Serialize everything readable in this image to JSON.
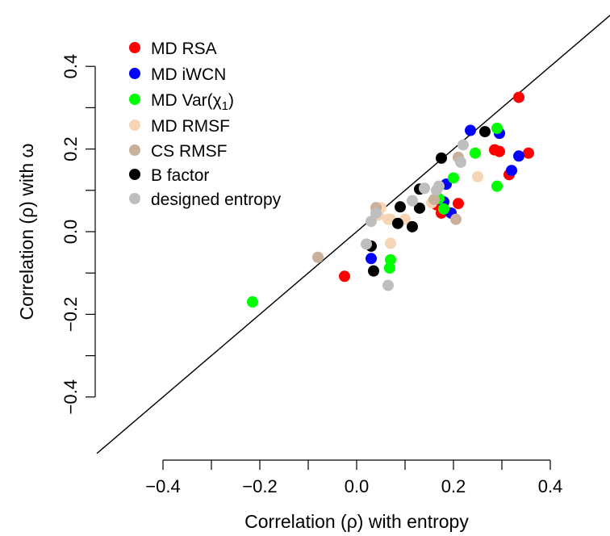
{
  "chart_data": {
    "type": "scatter",
    "xlabel": "Correlation (ρ) with entropy",
    "ylabel": "Correlation (ρ) with ω",
    "xlim": [
      -0.4,
      0.4
    ],
    "ylim": [
      -0.4,
      0.4
    ],
    "xticks": [
      -0.4,
      -0.3,
      -0.2,
      -0.1,
      0.0,
      0.1,
      0.2,
      0.3,
      0.4
    ],
    "xtick_labels": [
      "−0.4",
      "",
      "−0.2",
      "",
      "0.0",
      "",
      "0.2",
      "",
      "0.4"
    ],
    "yticks": [
      -0.4,
      -0.3,
      -0.2,
      -0.1,
      0.0,
      0.1,
      0.2,
      0.3,
      0.4
    ],
    "ytick_labels": [
      "−0.4",
      "",
      "−0.2",
      "",
      "0.0",
      "",
      "0.2",
      "",
      "0.4"
    ],
    "reference_line": "y = x",
    "legend_position": "top-left",
    "series": [
      {
        "name": "MD RSA",
        "color": "#ff0000",
        "points": [
          [
            0.335,
            0.325
          ],
          [
            0.355,
            0.19
          ],
          [
            0.285,
            0.198
          ],
          [
            0.295,
            0.194
          ],
          [
            0.315,
            0.138
          ],
          [
            0.21,
            0.068
          ],
          [
            0.175,
            0.045
          ],
          [
            0.165,
            0.065
          ],
          [
            -0.025,
            -0.108
          ]
        ]
      },
      {
        "name": "MD iWCN",
        "color": "#0000ff",
        "points": [
          [
            0.235,
            0.245
          ],
          [
            0.295,
            0.238
          ],
          [
            0.335,
            0.183
          ],
          [
            0.32,
            0.148
          ],
          [
            0.185,
            0.115
          ],
          [
            0.18,
            0.072
          ],
          [
            0.195,
            0.045
          ],
          [
            0.03,
            -0.065
          ]
        ]
      },
      {
        "name": "MD Var(χ₁)",
        "color": "#00ff00",
        "points": [
          [
            0.29,
            0.25
          ],
          [
            0.245,
            0.19
          ],
          [
            0.2,
            0.13
          ],
          [
            0.29,
            0.11
          ],
          [
            0.17,
            0.08
          ],
          [
            0.18,
            0.055
          ],
          [
            0.07,
            -0.068
          ],
          [
            0.068,
            -0.088
          ],
          [
            -0.215,
            -0.17
          ]
        ]
      },
      {
        "name": "MD RMSF",
        "color": "#f5d5b5",
        "points": [
          [
            0.25,
            0.133
          ],
          [
            0.05,
            0.058
          ],
          [
            0.045,
            0.04
          ],
          [
            0.065,
            0.03
          ],
          [
            0.07,
            0.03
          ],
          [
            0.1,
            0.03
          ],
          [
            0.07,
            -0.028
          ],
          [
            0.155,
            0.07
          ]
        ]
      },
      {
        "name": "CS RMSF",
        "color": "#c8b09a",
        "points": [
          [
            0.21,
            0.18
          ],
          [
            0.16,
            0.078
          ],
          [
            0.04,
            0.058
          ],
          [
            0.205,
            0.03
          ],
          [
            -0.08,
            -0.062
          ]
        ]
      },
      {
        "name": "B factor",
        "color": "#000000",
        "points": [
          [
            0.265,
            0.242
          ],
          [
            0.175,
            0.178
          ],
          [
            0.13,
            0.103
          ],
          [
            0.09,
            0.06
          ],
          [
            0.13,
            0.057
          ],
          [
            0.085,
            0.02
          ],
          [
            0.115,
            0.012
          ],
          [
            0.03,
            -0.035
          ],
          [
            0.035,
            -0.095
          ]
        ]
      },
      {
        "name": "designed entropy",
        "color": "#bebebe",
        "points": [
          [
            0.22,
            0.21
          ],
          [
            0.215,
            0.168
          ],
          [
            0.14,
            0.105
          ],
          [
            0.17,
            0.11
          ],
          [
            0.115,
            0.075
          ],
          [
            0.165,
            0.1
          ],
          [
            0.04,
            0.045
          ],
          [
            0.03,
            0.025
          ],
          [
            0.02,
            -0.03
          ],
          [
            0.065,
            -0.13
          ]
        ]
      }
    ],
    "legend_labels": {
      "s0": "MD RSA",
      "s1": "MD iWCN",
      "s2_pre": "MD Var(χ",
      "s2_sub": "1",
      "s2_post": ")",
      "s3": "MD RMSF",
      "s4": "CS RMSF",
      "s5": "B factor",
      "s6": "designed entropy"
    }
  }
}
